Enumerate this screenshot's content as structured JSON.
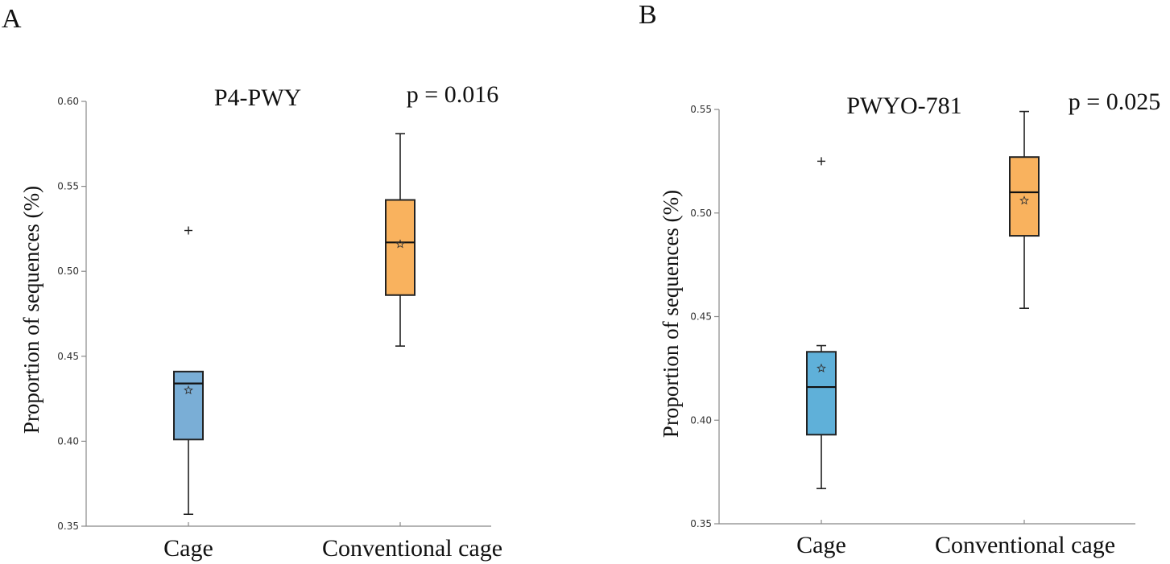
{
  "chart_data": [
    {
      "panel": "A",
      "type": "box",
      "title": "P4-PWY",
      "p_value": "p = 0.016",
      "ylabel": "Proportion of sequences (%)",
      "ylim": [
        0.35,
        0.6
      ],
      "yticks": [
        "0.35",
        "0.40",
        "0.45",
        "0.50",
        "0.55",
        "0.60"
      ],
      "categories": [
        "Cage",
        "Conventional cage"
      ],
      "colors": [
        "#7aaed6",
        "#f9b25e"
      ],
      "boxes": [
        {
          "name": "Cage",
          "whisker_low": 0.357,
          "q1": 0.401,
          "median": 0.434,
          "q3": 0.441,
          "whisker_high": 0.441,
          "mean": 0.43,
          "outliers": [
            0.524
          ]
        },
        {
          "name": "Conventional cage",
          "whisker_low": 0.456,
          "q1": 0.486,
          "median": 0.517,
          "q3": 0.542,
          "whisker_high": 0.581,
          "mean": 0.516,
          "outliers": []
        }
      ]
    },
    {
      "panel": "B",
      "type": "box",
      "title": "PWYO-781",
      "p_value": "p = 0.025",
      "ylabel": "Proportion of sequences (%)",
      "ylim": [
        0.35,
        0.55
      ],
      "yticks": [
        "0.35",
        "0.40",
        "0.45",
        "0.50",
        "0.55"
      ],
      "categories": [
        "Cage",
        "Conventional cage"
      ],
      "colors": [
        "#5fb0d9",
        "#f9b25e"
      ],
      "boxes": [
        {
          "name": "Cage",
          "whisker_low": 0.367,
          "q1": 0.393,
          "median": 0.416,
          "q3": 0.433,
          "whisker_high": 0.436,
          "mean": 0.425,
          "outliers": [
            0.525
          ]
        },
        {
          "name": "Conventional cage",
          "whisker_low": 0.454,
          "q1": 0.489,
          "median": 0.51,
          "q3": 0.527,
          "whisker_high": 0.549,
          "mean": 0.506,
          "outliers": []
        }
      ]
    }
  ]
}
